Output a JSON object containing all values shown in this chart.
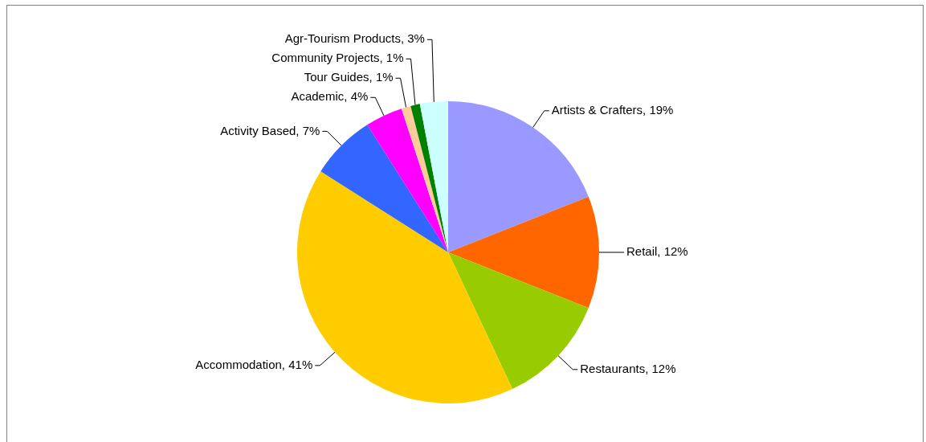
{
  "chart_data": {
    "type": "pie",
    "categories": [
      "Artists & Crafters",
      "Retail",
      "Restaurants",
      "Accommodation",
      "Activity Based",
      "Academic",
      "Tour Guides",
      "Community Projects",
      "Agr-Tourism Products"
    ],
    "values": [
      19,
      12,
      12,
      41,
      7,
      4,
      1,
      1,
      3
    ],
    "value_labels": [
      "19%",
      "12%",
      "12%",
      "41%",
      "7%",
      "4%",
      "1%",
      "1%",
      "3%"
    ],
    "colors": [
      "#9999ff",
      "#ff6600",
      "#99cc00",
      "#ffcc00",
      "#3366ff",
      "#ff00ff",
      "#ffcc99",
      "#008000",
      "#ccffff"
    ],
    "legend": false
  }
}
